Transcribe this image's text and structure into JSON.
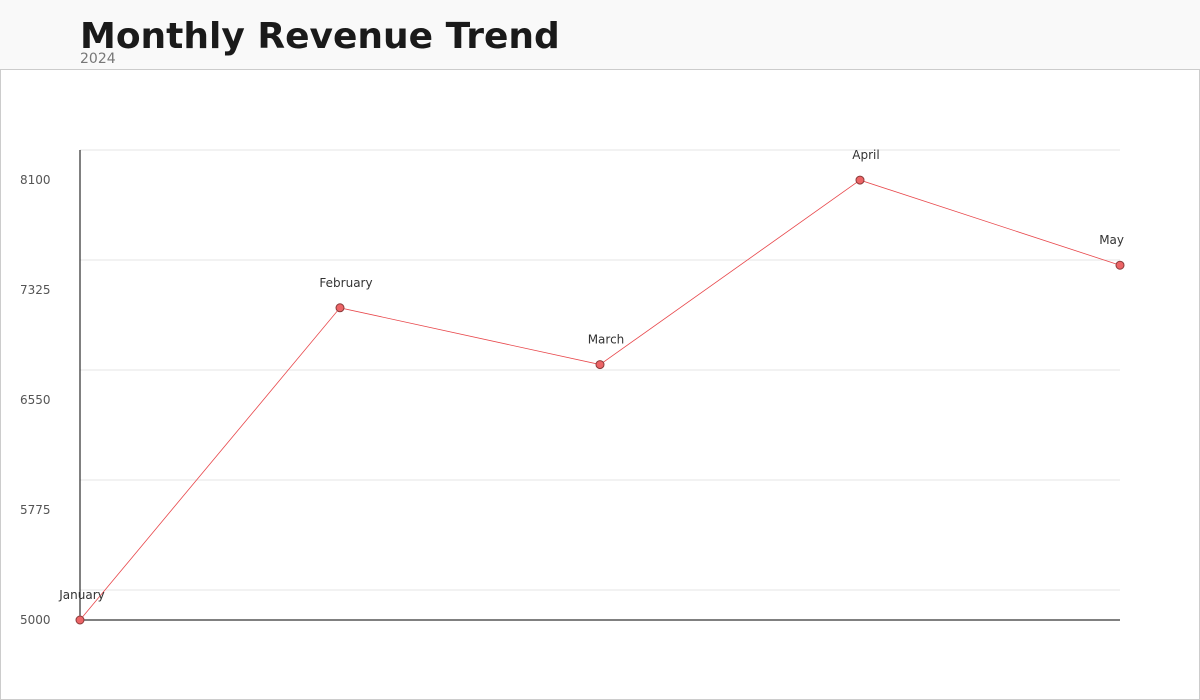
{
  "header": {
    "title": "Monthly Revenue Trend",
    "subtitle": "2024"
  },
  "colors": {
    "line": "#e8474b",
    "point_fill": "#ec6466",
    "point_stroke": "#8a3a3a",
    "grid": "#e6e6e6",
    "axis": "#000000"
  },
  "chart_data": {
    "type": "line",
    "title": "Monthly Revenue Trend",
    "subtitle": "2024",
    "xlabel": "",
    "ylabel": "",
    "categories": [
      "January",
      "February",
      "March",
      "April",
      "May"
    ],
    "series": [
      {
        "values": [
          5000,
          7200,
          6800,
          8100,
          7500
        ]
      }
    ],
    "y_ticks": [
      5000,
      5775,
      6550,
      7325,
      8100
    ],
    "ylim": [
      5000,
      8312
    ],
    "grid": true,
    "legend": "none",
    "point_labels": "category names above points"
  }
}
